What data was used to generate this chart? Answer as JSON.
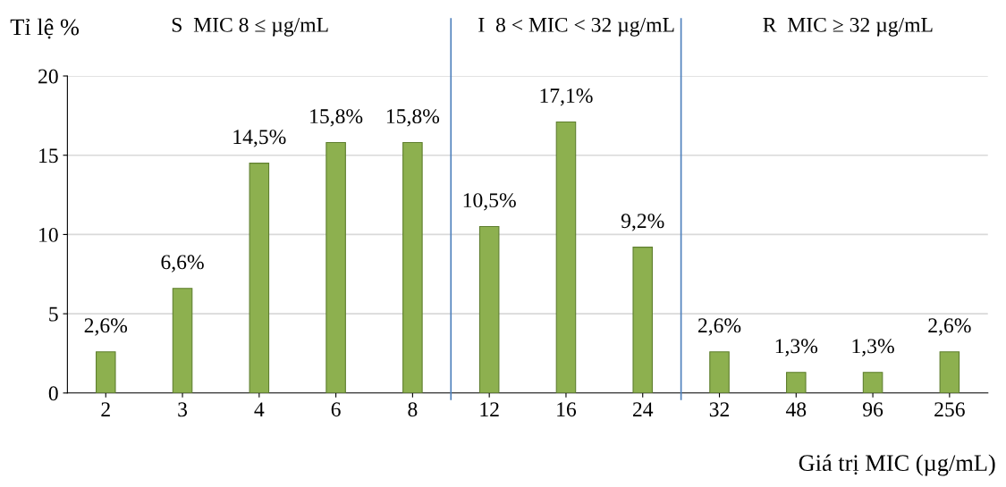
{
  "chart_data": {
    "type": "bar",
    "ylabel": "Tỉ lệ %",
    "xlabel": "Giá trị MIC (µg/mL)",
    "categories": [
      "2",
      "3",
      "4",
      "6",
      "8",
      "12",
      "16",
      "24",
      "32",
      "48",
      "96",
      "256"
    ],
    "values": [
      2.6,
      6.6,
      14.5,
      15.8,
      15.8,
      10.5,
      17.1,
      9.2,
      2.6,
      1.3,
      1.3,
      2.6
    ],
    "value_labels": [
      "2,6%",
      "6,6%",
      "14,5%",
      "15,8%",
      "15,8%",
      "10,5%",
      "17,1%",
      "9,2%",
      "2,6%",
      "1,3%",
      "1,3%",
      "2,6%"
    ],
    "color": "#8db04f",
    "ylim": [
      0,
      20
    ],
    "yticks": [
      0,
      5,
      10,
      15,
      20
    ],
    "grid": "y",
    "annotations": [
      "S  MIC 8 ≤ µg/mL",
      "I  8 < MIC < 32 µg/mL",
      "R  MIC ≥ 32 µg/mL"
    ]
  }
}
